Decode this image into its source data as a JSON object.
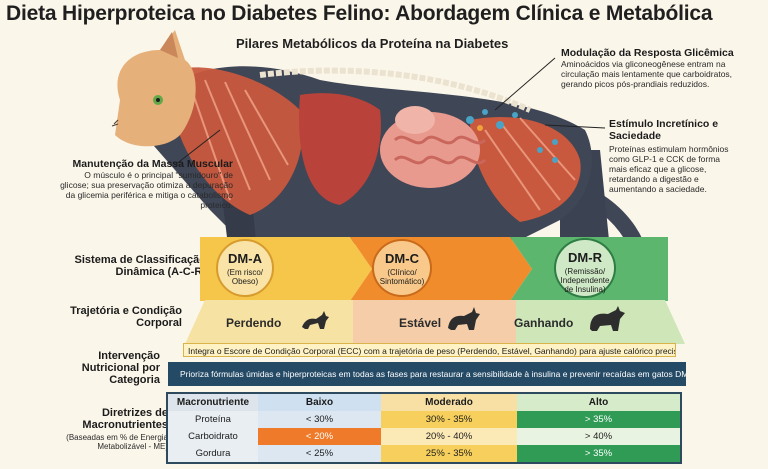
{
  "title": "Dieta Hiperproteica no Diabetes Felino: Abordagem Clínica e Metabólica",
  "subtitle": "Pilares Metabólicos da Proteína na Diabetes",
  "callouts": {
    "glycemic": {
      "title": "Modulação da Resposta Glicêmica",
      "text": "Aminoácidos via gliconeogênese entram na circulação mais lentamente que carboidratos, gerando picos pós-prandiais reduzidos."
    },
    "incretin": {
      "title": "Estímulo Incretínico e Saciedade",
      "text": "Proteínas estimulam hormônios como GLP-1 e CCK de forma mais eficaz que a glicose, retardando a digestão e aumentando a saciedade."
    },
    "muscle": {
      "title": "Manutenção da Massa Muscular",
      "text": "O músculo é o principal \"sumidouro\" de glicose; sua preservação otimiza a depuração da glicemia periférica e mitiga o catabolismo proteico."
    }
  },
  "classification": {
    "label": "Sistema de Classificação Dinâmica (A-C-R)",
    "stages": [
      {
        "name": "DM-A",
        "desc": "(Em risco/ Obeso)",
        "color": "#f2b632"
      },
      {
        "name": "DM-C",
        "desc": "(Clínico/ Sintomático)",
        "color": "#f08a2a"
      },
      {
        "name": "DM-R",
        "desc": "(Remissão/ Independente de Insulina)",
        "color": "#56b06a"
      }
    ]
  },
  "trajectory": {
    "label": "Trajetória e Condição Corporal",
    "states": [
      "Perdendo",
      "Estável",
      "Ganhando"
    ],
    "banner": "Integra o Escore de Condição Corporal (ECC) com a trajetória de peso (Perdendo, Estável, Ganhando) para ajuste calórico preciso."
  },
  "intervention": {
    "label": "Intervenção Nutricional por Categoria",
    "banner": "Prioriza fórmulas úmidas e hiperproteicas em todas as fases para restaurar a sensibilidade à insulina e prevenir recaídas em gatos DM-R."
  },
  "macros": {
    "label": "Diretrizes de Macronutrientes",
    "sublabel": "(Baseadas em % de Energia Metabolizável - ME)",
    "headers": [
      "Macronutriente",
      "Baixo",
      "Moderado",
      "Alto"
    ],
    "rows": [
      {
        "name": "Proteína",
        "values": [
          "< 30%",
          "30% - 35%",
          "> 35%"
        ]
      },
      {
        "name": "Carboidrato",
        "values": [
          "< 20%",
          "20% - 40%",
          "> 40%"
        ]
      },
      {
        "name": "Gordura",
        "values": [
          "< 25%",
          "25% - 35%",
          "> 35%"
        ]
      }
    ]
  }
}
